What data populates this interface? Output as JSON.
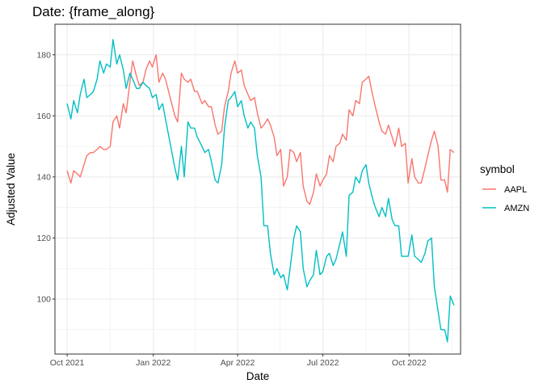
{
  "chart_data": {
    "type": "line",
    "title": "Date: {frame_along}",
    "xlabel": "Date",
    "ylabel": "Adjusted Value",
    "x_ticks": [
      {
        "date": "2021-10-01",
        "label": "Oct 2021"
      },
      {
        "date": "2022-01-01",
        "label": "Jan 2022"
      },
      {
        "date": "2022-04-01",
        "label": "Apr 2022"
      },
      {
        "date": "2022-07-01",
        "label": "Jul 2022"
      },
      {
        "date": "2022-10-01",
        "label": "Oct 2022"
      }
    ],
    "xlim": [
      "2021-09-18",
      "2022-11-25"
    ],
    "y_ticks": [
      100,
      120,
      140,
      160,
      180
    ],
    "ylim": [
      82,
      190
    ],
    "grid": true,
    "legend_title": "symbol",
    "legend_position": "right",
    "series": [
      {
        "name": "AAPL",
        "color": "#F8766D",
        "points": [
          [
            "2021-10-01",
            142
          ],
          [
            "2021-10-05",
            138
          ],
          [
            "2021-10-08",
            142
          ],
          [
            "2021-10-12",
            141
          ],
          [
            "2021-10-15",
            140
          ],
          [
            "2021-10-19",
            144
          ],
          [
            "2021-10-22",
            147
          ],
          [
            "2021-10-26",
            148
          ],
          [
            "2021-10-29",
            148
          ],
          [
            "2021-11-02",
            149
          ],
          [
            "2021-11-05",
            150
          ],
          [
            "2021-11-09",
            149
          ],
          [
            "2021-11-12",
            149
          ],
          [
            "2021-11-16",
            150
          ],
          [
            "2021-11-19",
            158
          ],
          [
            "2021-11-23",
            160
          ],
          [
            "2021-11-26",
            156
          ],
          [
            "2021-11-30",
            164
          ],
          [
            "2021-12-03",
            161
          ],
          [
            "2021-12-07",
            171
          ],
          [
            "2021-12-10",
            178
          ],
          [
            "2021-12-14",
            173
          ],
          [
            "2021-12-17",
            170
          ],
          [
            "2021-12-21",
            171
          ],
          [
            "2021-12-24",
            175
          ],
          [
            "2021-12-28",
            178
          ],
          [
            "2021-12-31",
            176
          ],
          [
            "2022-01-04",
            180
          ],
          [
            "2022-01-07",
            171
          ],
          [
            "2022-01-11",
            174
          ],
          [
            "2022-01-14",
            172
          ],
          [
            "2022-01-19",
            166
          ],
          [
            "2022-01-24",
            160
          ],
          [
            "2022-01-27",
            158
          ],
          [
            "2022-01-31",
            174
          ],
          [
            "2022-02-03",
            172
          ],
          [
            "2022-02-07",
            171
          ],
          [
            "2022-02-10",
            172
          ],
          [
            "2022-02-14",
            168
          ],
          [
            "2022-02-17",
            168
          ],
          [
            "2022-02-22",
            164
          ],
          [
            "2022-02-25",
            165
          ],
          [
            "2022-03-01",
            163
          ],
          [
            "2022-03-04",
            163
          ],
          [
            "2022-03-08",
            157
          ],
          [
            "2022-03-11",
            154
          ],
          [
            "2022-03-15",
            155
          ],
          [
            "2022-03-18",
            163
          ],
          [
            "2022-03-22",
            168
          ],
          [
            "2022-03-25",
            174
          ],
          [
            "2022-03-29",
            178
          ],
          [
            "2022-04-01",
            174
          ],
          [
            "2022-04-05",
            175
          ],
          [
            "2022-04-08",
            170
          ],
          [
            "2022-04-12",
            167
          ],
          [
            "2022-04-15",
            165
          ],
          [
            "2022-04-19",
            166
          ],
          [
            "2022-04-22",
            161
          ],
          [
            "2022-04-26",
            156
          ],
          [
            "2022-04-29",
            157
          ],
          [
            "2022-05-03",
            159
          ],
          [
            "2022-05-06",
            157
          ],
          [
            "2022-05-10",
            153
          ],
          [
            "2022-05-13",
            147
          ],
          [
            "2022-05-17",
            149
          ],
          [
            "2022-05-20",
            137
          ],
          [
            "2022-05-24",
            140
          ],
          [
            "2022-05-27",
            149
          ],
          [
            "2022-05-31",
            148
          ],
          [
            "2022-06-03",
            145
          ],
          [
            "2022-06-07",
            148
          ],
          [
            "2022-06-10",
            137
          ],
          [
            "2022-06-14",
            132
          ],
          [
            "2022-06-17",
            131
          ],
          [
            "2022-06-21",
            135
          ],
          [
            "2022-06-24",
            141
          ],
          [
            "2022-06-28",
            137
          ],
          [
            "2022-07-01",
            139
          ],
          [
            "2022-07-05",
            141
          ],
          [
            "2022-07-08",
            147
          ],
          [
            "2022-07-12",
            145
          ],
          [
            "2022-07-15",
            150
          ],
          [
            "2022-07-19",
            151
          ],
          [
            "2022-07-22",
            154
          ],
          [
            "2022-07-26",
            152
          ],
          [
            "2022-07-29",
            162
          ],
          [
            "2022-08-02",
            160
          ],
          [
            "2022-08-05",
            165
          ],
          [
            "2022-08-09",
            164
          ],
          [
            "2022-08-12",
            171
          ],
          [
            "2022-08-16",
            172
          ],
          [
            "2022-08-19",
            173
          ],
          [
            "2022-08-23",
            167
          ],
          [
            "2022-08-26",
            163
          ],
          [
            "2022-08-30",
            158
          ],
          [
            "2022-09-02",
            155
          ],
          [
            "2022-09-06",
            154
          ],
          [
            "2022-09-09",
            157
          ],
          [
            "2022-09-13",
            153
          ],
          [
            "2022-09-16",
            150
          ],
          [
            "2022-09-20",
            156
          ],
          [
            "2022-09-23",
            150
          ],
          [
            "2022-09-27",
            151
          ],
          [
            "2022-09-30",
            138
          ],
          [
            "2022-10-04",
            146
          ],
          [
            "2022-10-07",
            140
          ],
          [
            "2022-10-11",
            138
          ],
          [
            "2022-10-14",
            138
          ],
          [
            "2022-10-18",
            143
          ],
          [
            "2022-10-21",
            147
          ],
          [
            "2022-10-25",
            152
          ],
          [
            "2022-10-28",
            155
          ],
          [
            "2022-11-01",
            150
          ],
          [
            "2022-11-04",
            139
          ],
          [
            "2022-11-08",
            139
          ],
          [
            "2022-11-11",
            135
          ],
          [
            "2022-11-14",
            149
          ],
          [
            "2022-11-18",
            148
          ]
        ]
      },
      {
        "name": "AMZN",
        "color": "#00BFC4",
        "points": [
          [
            "2021-10-01",
            164
          ],
          [
            "2021-10-05",
            159
          ],
          [
            "2021-10-08",
            165
          ],
          [
            "2021-10-12",
            161
          ],
          [
            "2021-10-15",
            167
          ],
          [
            "2021-10-19",
            172
          ],
          [
            "2021-10-22",
            166
          ],
          [
            "2021-10-26",
            167
          ],
          [
            "2021-10-29",
            168
          ],
          [
            "2021-11-02",
            172
          ],
          [
            "2021-11-05",
            178
          ],
          [
            "2021-11-09",
            174
          ],
          [
            "2021-11-12",
            177
          ],
          [
            "2021-11-16",
            176
          ],
          [
            "2021-11-19",
            185
          ],
          [
            "2021-11-23",
            177
          ],
          [
            "2021-11-26",
            180
          ],
          [
            "2021-11-30",
            175
          ],
          [
            "2021-12-03",
            169
          ],
          [
            "2021-12-07",
            174
          ],
          [
            "2021-12-10",
            172
          ],
          [
            "2021-12-14",
            169
          ],
          [
            "2021-12-17",
            169
          ],
          [
            "2021-12-21",
            171
          ],
          [
            "2021-12-24",
            170
          ],
          [
            "2021-12-28",
            169
          ],
          [
            "2021-12-31",
            166
          ],
          [
            "2022-01-04",
            167
          ],
          [
            "2022-01-07",
            162
          ],
          [
            "2022-01-11",
            164
          ],
          [
            "2022-01-14",
            159
          ],
          [
            "2022-01-19",
            151
          ],
          [
            "2022-01-24",
            143
          ],
          [
            "2022-01-27",
            139
          ],
          [
            "2022-01-31",
            150
          ],
          [
            "2022-02-03",
            140
          ],
          [
            "2022-02-07",
            158
          ],
          [
            "2022-02-10",
            156
          ],
          [
            "2022-02-14",
            156
          ],
          [
            "2022-02-17",
            153
          ],
          [
            "2022-02-22",
            150
          ],
          [
            "2022-02-25",
            148
          ],
          [
            "2022-03-01",
            149
          ],
          [
            "2022-03-04",
            145
          ],
          [
            "2022-03-08",
            139
          ],
          [
            "2022-03-11",
            138
          ],
          [
            "2022-03-15",
            144
          ],
          [
            "2022-03-18",
            156
          ],
          [
            "2022-03-22",
            165
          ],
          [
            "2022-03-25",
            166
          ],
          [
            "2022-03-29",
            168
          ],
          [
            "2022-04-01",
            163
          ],
          [
            "2022-04-05",
            165
          ],
          [
            "2022-04-08",
            160
          ],
          [
            "2022-04-12",
            156
          ],
          [
            "2022-04-15",
            158
          ],
          [
            "2022-04-19",
            156
          ],
          [
            "2022-04-22",
            147
          ],
          [
            "2022-04-26",
            140
          ],
          [
            "2022-04-29",
            124
          ],
          [
            "2022-05-03",
            124
          ],
          [
            "2022-05-06",
            115
          ],
          [
            "2022-05-10",
            108
          ],
          [
            "2022-05-13",
            110
          ],
          [
            "2022-05-17",
            107
          ],
          [
            "2022-05-20",
            108
          ],
          [
            "2022-05-24",
            103
          ],
          [
            "2022-05-27",
            110
          ],
          [
            "2022-05-31",
            120
          ],
          [
            "2022-06-03",
            124
          ],
          [
            "2022-06-07",
            122
          ],
          [
            "2022-06-10",
            110
          ],
          [
            "2022-06-14",
            104
          ],
          [
            "2022-06-17",
            106
          ],
          [
            "2022-06-21",
            108
          ],
          [
            "2022-06-24",
            116
          ],
          [
            "2022-06-28",
            108
          ],
          [
            "2022-07-01",
            109
          ],
          [
            "2022-07-05",
            114
          ],
          [
            "2022-07-08",
            115
          ],
          [
            "2022-07-12",
            111
          ],
          [
            "2022-07-15",
            113
          ],
          [
            "2022-07-19",
            118
          ],
          [
            "2022-07-22",
            122
          ],
          [
            "2022-07-26",
            114
          ],
          [
            "2022-07-29",
            134
          ],
          [
            "2022-08-02",
            135
          ],
          [
            "2022-08-05",
            140
          ],
          [
            "2022-08-09",
            138
          ],
          [
            "2022-08-12",
            142
          ],
          [
            "2022-08-16",
            144
          ],
          [
            "2022-08-19",
            138
          ],
          [
            "2022-08-23",
            133
          ],
          [
            "2022-08-26",
            130
          ],
          [
            "2022-08-30",
            127
          ],
          [
            "2022-09-02",
            130
          ],
          [
            "2022-09-06",
            127
          ],
          [
            "2022-09-09",
            133
          ],
          [
            "2022-09-13",
            126
          ],
          [
            "2022-09-16",
            124
          ],
          [
            "2022-09-20",
            124
          ],
          [
            "2022-09-23",
            114
          ],
          [
            "2022-09-27",
            114
          ],
          [
            "2022-09-30",
            114
          ],
          [
            "2022-10-04",
            121
          ],
          [
            "2022-10-07",
            114
          ],
          [
            "2022-10-11",
            113
          ],
          [
            "2022-10-14",
            112
          ],
          [
            "2022-10-18",
            115
          ],
          [
            "2022-10-21",
            119
          ],
          [
            "2022-10-25",
            120
          ],
          [
            "2022-10-28",
            104
          ],
          [
            "2022-11-01",
            96
          ],
          [
            "2022-11-04",
            90
          ],
          [
            "2022-11-08",
            90
          ],
          [
            "2022-11-11",
            86
          ],
          [
            "2022-11-14",
            101
          ],
          [
            "2022-11-18",
            98
          ]
        ]
      }
    ]
  }
}
